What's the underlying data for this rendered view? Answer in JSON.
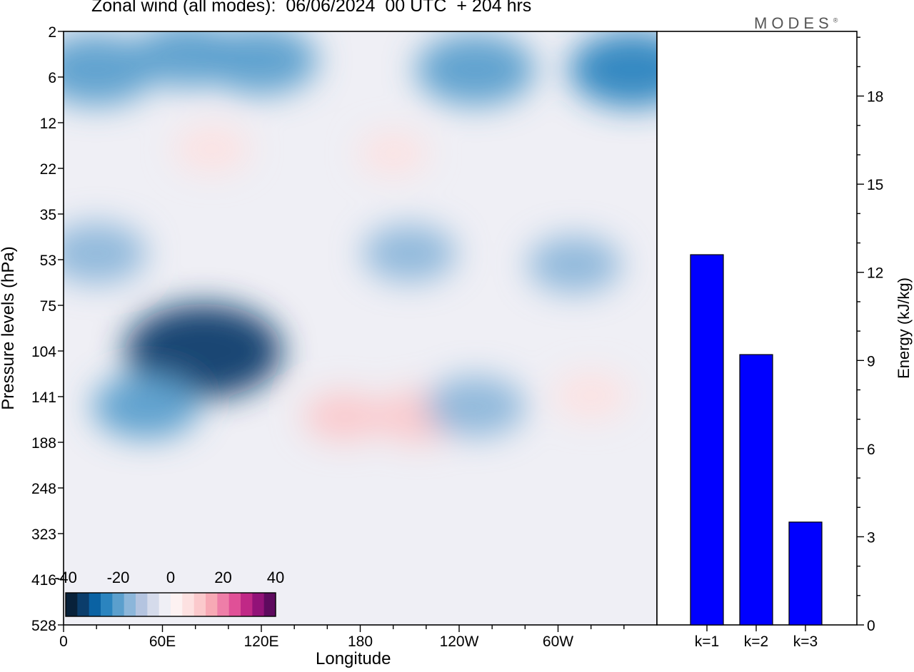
{
  "chart_data": [
    {
      "type": "heatmap",
      "title": "Zonal wind (all modes):  06/06/2024  00 UTC  + 204 hrs",
      "xlabel": "Longitude",
      "ylabel": "Pressure levels (hPa)",
      "x_ticks": [
        "0",
        "60E",
        "120E",
        "180",
        "120W",
        "60W"
      ],
      "x_tick_degrees": [
        0,
        60,
        120,
        180,
        240,
        300
      ],
      "xlim": [
        0,
        360
      ],
      "y_ticks": [
        2,
        6,
        12,
        22,
        35,
        53,
        75,
        104,
        141,
        188,
        248,
        323,
        416,
        528
      ],
      "y_scale": "uneven pressure levels, top = 2 hPa, bottom = 528 hPa",
      "colorbar": {
        "tick_labels": [
          "-40",
          "-20",
          "0",
          "20",
          "40"
        ],
        "range": [
          -40,
          40
        ],
        "colors": [
          "#08213a",
          "#0b3d6b",
          "#0a62a3",
          "#2b84bf",
          "#5b9fcd",
          "#8cb6da",
          "#b4c4e0",
          "#d5dbeb",
          "#efeff5",
          "#fdf2f2",
          "#fde1e1",
          "#fbc9cc",
          "#f7a9b5",
          "#ee7ea8",
          "#e05097",
          "#c02886",
          "#921278",
          "#5e0a5e"
        ]
      },
      "regions": [
        {
          "lon": 20,
          "plev": 5,
          "value": -22
        },
        {
          "lon": 75,
          "plev": 3.5,
          "value": -18
        },
        {
          "lon": 120,
          "plev": 4,
          "value": -20
        },
        {
          "lon": 250,
          "plev": 5,
          "value": -22
        },
        {
          "lon": 345,
          "plev": 5,
          "value": -24
        },
        {
          "lon": 90,
          "plev": 17,
          "value": 8
        },
        {
          "lon": 200,
          "plev": 18,
          "value": 6
        },
        {
          "lon": 20,
          "plev": 50,
          "value": -16
        },
        {
          "lon": 210,
          "plev": 50,
          "value": -14
        },
        {
          "lon": 310,
          "plev": 55,
          "value": -14
        },
        {
          "lon": 85,
          "plev": 104,
          "value": -34
        },
        {
          "lon": 50,
          "plev": 150,
          "value": -18
        },
        {
          "lon": 170,
          "plev": 160,
          "value": 10
        },
        {
          "lon": 215,
          "plev": 160,
          "value": 12
        },
        {
          "lon": 250,
          "plev": 150,
          "value": -16
        },
        {
          "lon": 320,
          "plev": 140,
          "value": 8
        }
      ]
    },
    {
      "type": "bar",
      "ylabel": "Energy (kJ/kg)",
      "categories": [
        "k=1",
        "k=2",
        "k=3"
      ],
      "values": [
        12.6,
        9.2,
        3.5
      ],
      "ylim": [
        0,
        20.2
      ],
      "y_ticks": [
        0,
        3,
        6,
        9,
        12,
        15,
        18
      ],
      "bar_color": "#0000ff"
    }
  ],
  "logo": {
    "text": "MODES",
    "mark": "®"
  }
}
